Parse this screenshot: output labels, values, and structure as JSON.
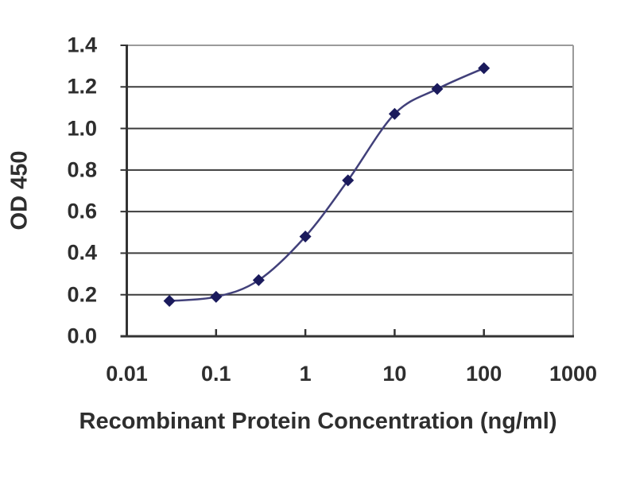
{
  "chart_data": {
    "type": "line",
    "title": "",
    "xlabel": "Recombinant Protein Concentration (ng/ml)",
    "ylabel": "OD 450",
    "x_scale": "log",
    "y_scale": "linear",
    "xlim": [
      0.01,
      1000
    ],
    "ylim": [
      0,
      1.4
    ],
    "grid": "horizontal",
    "legend": "none",
    "x_ticks": [
      {
        "value": 0.01,
        "label": "0.01"
      },
      {
        "value": 0.1,
        "label": "0.1"
      },
      {
        "value": 1,
        "label": "1"
      },
      {
        "value": 10,
        "label": "10"
      },
      {
        "value": 100,
        "label": "100"
      },
      {
        "value": 1000,
        "label": "1000"
      }
    ],
    "y_ticks": [
      {
        "value": 0.0,
        "label": "0.0"
      },
      {
        "value": 0.2,
        "label": "0.2"
      },
      {
        "value": 0.4,
        "label": "0.4"
      },
      {
        "value": 0.6,
        "label": "0.6"
      },
      {
        "value": 0.8,
        "label": "0.8"
      },
      {
        "value": 1.0,
        "label": "1.0"
      },
      {
        "value": 1.2,
        "label": "1.2"
      },
      {
        "value": 1.4,
        "label": "1.4"
      }
    ],
    "series": [
      {
        "name": "OD 450 standard curve",
        "marker": "diamond",
        "line_style": "smooth",
        "x": [
          0.03,
          0.1,
          0.3,
          1,
          3,
          10,
          30,
          100
        ],
        "y": [
          0.17,
          0.19,
          0.27,
          0.48,
          0.75,
          1.07,
          1.19,
          1.29
        ]
      }
    ],
    "colors": {
      "curve": "#41407a",
      "marker": "#1a1a5c",
      "grid": "#3d3d3d",
      "frame_light": "#9a9a9a",
      "axis": "#333333",
      "text": "#2e2e2e",
      "background": "#ffffff"
    }
  }
}
